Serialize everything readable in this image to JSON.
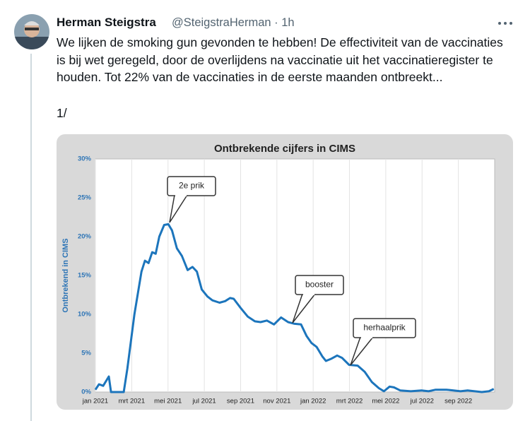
{
  "tweet": {
    "author": "Herman Steigstra",
    "meta": "@SteigstraHerman · 1h",
    "text": "We lijken de smoking gun gevonden te hebben! De effectiviteit van de vaccinaties is bij wet geregeld, door de overlijdens na vaccinatie uit het vaccinatieregister te houden. Tot 22% van de vaccinaties in de eerste maanden ontbreekt...",
    "thread_marker": "1/"
  },
  "chart_data": {
    "type": "line",
    "title": "Ontbrekende cijfers in CIMS",
    "y_label": "Ontbrekend in CIMS",
    "x": [
      0,
      0.2,
      0.43,
      0.74,
      0.86,
      1.56,
      1.76,
      2.15,
      2.54,
      2.73,
      2.93,
      3.13,
      3.32,
      3.52,
      3.79,
      4.02,
      4.22,
      4.49,
      4.77,
      5.08,
      5.35,
      5.59,
      5.86,
      6.17,
      6.45,
      6.84,
      7.15,
      7.42,
      7.62,
      8.01,
      8.4,
      8.79,
      9.1,
      9.45,
      9.84,
      10.23,
      10.62,
      10.94,
      11.33,
      11.64,
      11.91,
      12.19,
      12.5,
      12.7,
      13.01,
      13.32,
      13.59,
      13.98,
      14.45,
      14.84,
      15.23,
      15.62,
      15.9,
      16.21,
      16.45,
      16.8,
      17.38,
      17.97,
      18.36,
      18.75,
      19.34,
      19.73,
      20.12,
      20.51,
      21.29,
      21.68,
      21.95
    ],
    "series": [
      {
        "name": "Ontbrekend",
        "color": "#1c75bc",
        "values": [
          0.3,
          1,
          0.8,
          2.0,
          0,
          0,
          3,
          10,
          15.5,
          16.9,
          16.6,
          18,
          17.8,
          20,
          21.5,
          21.6,
          20.8,
          18.5,
          17.5,
          15.7,
          16.1,
          15.5,
          13.2,
          12.3,
          11.8,
          11.5,
          11.7,
          12.1,
          12.0,
          10.8,
          9.7,
          9.1,
          9.0,
          9.2,
          8.7,
          9.6,
          9.0,
          8.8,
          8.7,
          7.2,
          6.3,
          5.8,
          4.6,
          4.0,
          4.3,
          4.7,
          4.4,
          3.5,
          3.4,
          2.6,
          1.3,
          0.5,
          0.1,
          0.7,
          0.6,
          0.2,
          0.1,
          0.2,
          0.1,
          0.3,
          0.3,
          0.2,
          0.1,
          0.2,
          0.0,
          0.1,
          0.4
        ]
      }
    ],
    "xlim": [
      0,
      22
    ],
    "xticks": [
      {
        "value": 0,
        "label": "jan 2021"
      },
      {
        "value": 2,
        "label": "mrt 2021"
      },
      {
        "value": 4,
        "label": "mei 2021"
      },
      {
        "value": 6,
        "label": "jul 2021"
      },
      {
        "value": 8,
        "label": "sep 2021"
      },
      {
        "value": 10,
        "label": "nov 2021"
      },
      {
        "value": 12,
        "label": "jan 2022"
      },
      {
        "value": 14,
        "label": "mrt 2022"
      },
      {
        "value": 16,
        "label": "mei 2022"
      },
      {
        "value": 18,
        "label": "jul 2022"
      },
      {
        "value": 20,
        "label": "sep 2022"
      }
    ],
    "ylim": [
      0,
      30
    ],
    "yticks": [
      {
        "value": 0,
        "label": "0%"
      },
      {
        "value": 5,
        "label": "5%"
      },
      {
        "value": 10,
        "label": "10%"
      },
      {
        "value": 15,
        "label": "15%"
      },
      {
        "value": 20,
        "label": "20%"
      },
      {
        "value": 25,
        "label": "25%"
      },
      {
        "value": 30,
        "label": "30%"
      }
    ],
    "grid": "x",
    "annotations": [
      "2e prik",
      "booster",
      "herhaalprik"
    ]
  }
}
